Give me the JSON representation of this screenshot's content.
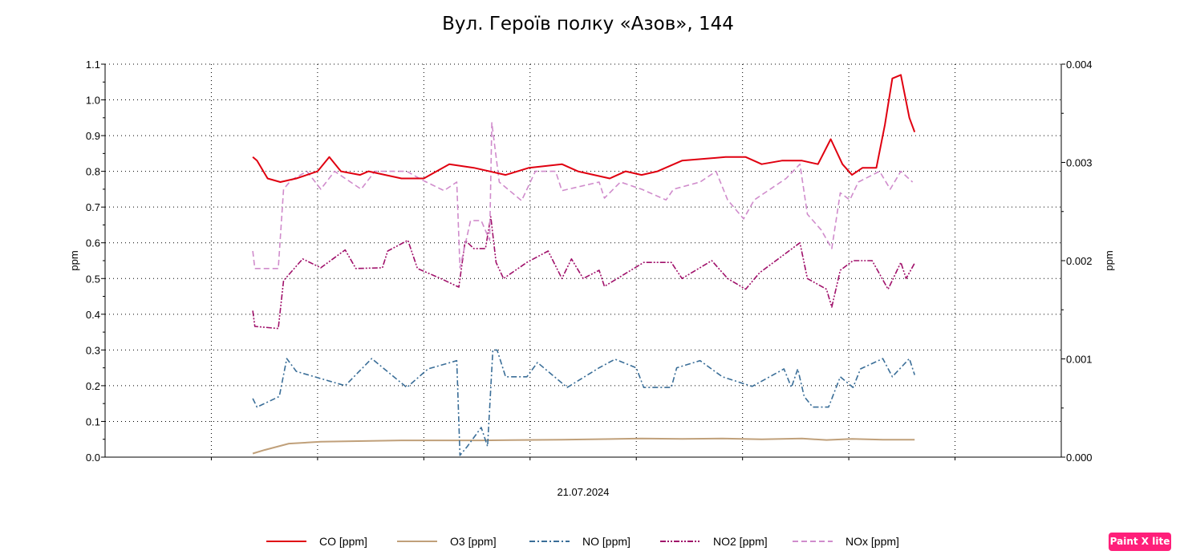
{
  "chart_data": {
    "type": "line",
    "title": "Вул. Героїв полку «Азов», 144",
    "xlabel": "21.07.2024",
    "ylabel": "ppm",
    "y2label": "ppm",
    "xlim": [
      0,
      9
    ],
    "ylim": [
      0,
      1.1
    ],
    "y2lim": [
      0,
      0.004
    ],
    "yticks": [
      "0.0",
      "0.1",
      "0.2",
      "0.3",
      "0.4",
      "0.5",
      "0.6",
      "0.7",
      "0.8",
      "0.9",
      "1.0",
      "1.1"
    ],
    "y2ticks": [
      "0.000",
      "0.001",
      "0.002",
      "0.003",
      "0.004"
    ],
    "grid": true,
    "legend_position": "bottom",
    "series": [
      {
        "name": "CO [ppm]",
        "color": "#e00010",
        "style": "solid",
        "x": [
          1.39,
          1.43,
          1.53,
          1.65,
          1.8,
          1.9,
          2.0,
          2.11,
          2.22,
          2.4,
          2.48,
          2.79,
          3.0,
          3.24,
          3.47,
          3.77,
          3.99,
          4.3,
          4.45,
          4.75,
          4.9,
          5.05,
          5.2,
          5.43,
          5.84,
          6.03,
          6.18,
          6.37,
          6.56,
          6.71,
          6.83,
          6.94,
          7.03,
          7.13,
          7.26,
          7.34,
          7.41,
          7.49,
          7.57,
          7.62
        ],
        "y": [
          0.84,
          0.83,
          0.78,
          0.77,
          0.78,
          0.79,
          0.8,
          0.84,
          0.8,
          0.79,
          0.8,
          0.78,
          0.78,
          0.82,
          0.81,
          0.79,
          0.81,
          0.82,
          0.8,
          0.78,
          0.8,
          0.79,
          0.8,
          0.83,
          0.84,
          0.84,
          0.82,
          0.83,
          0.83,
          0.82,
          0.89,
          0.82,
          0.79,
          0.81,
          0.81,
          0.93,
          1.06,
          1.07,
          0.95,
          0.91
        ]
      },
      {
        "name": "O3 [ppm]",
        "color": "#c0a07a",
        "style": "solid",
        "x": [
          1.39,
          1.5,
          1.73,
          2.03,
          2.79,
          3.54,
          4.3,
          5.05,
          5.43,
          5.81,
          6.18,
          6.56,
          6.79,
          7.03,
          7.32,
          7.62
        ],
        "y": [
          0.01,
          0.02,
          0.038,
          0.043,
          0.047,
          0.047,
          0.049,
          0.052,
          0.051,
          0.052,
          0.05,
          0.052,
          0.048,
          0.051,
          0.049,
          0.049
        ]
      },
      {
        "name": "NO [ppm]",
        "color": "#3a6e98",
        "style": "dashdot",
        "x": [
          1.39,
          1.43,
          1.64,
          1.71,
          1.8,
          2.26,
          2.51,
          2.84,
          3.04,
          3.31,
          3.34,
          3.41,
          3.54,
          3.6,
          3.65,
          3.69,
          3.77,
          3.97,
          4.07,
          4.35,
          4.65,
          4.8,
          5.0,
          5.07,
          5.33,
          5.38,
          5.6,
          5.81,
          6.09,
          6.39,
          6.46,
          6.52,
          6.58,
          6.66,
          6.81,
          6.92,
          7.04,
          7.11,
          7.32,
          7.41,
          7.57,
          7.62
        ],
        "y": [
          0.164,
          0.14,
          0.17,
          0.276,
          0.24,
          0.2,
          0.276,
          0.195,
          0.247,
          0.27,
          0.005,
          0.03,
          0.083,
          0.03,
          0.3,
          0.3,
          0.225,
          0.225,
          0.265,
          0.195,
          0.25,
          0.274,
          0.25,
          0.195,
          0.195,
          0.25,
          0.27,
          0.225,
          0.198,
          0.247,
          0.195,
          0.247,
          0.17,
          0.14,
          0.14,
          0.225,
          0.195,
          0.247,
          0.276,
          0.225,
          0.276,
          0.23
        ]
      },
      {
        "name": "NO2 [ppm]",
        "color": "#a0106a",
        "style": "dashdotdot",
        "x": [
          1.39,
          1.41,
          1.63,
          1.68,
          1.86,
          2.03,
          2.26,
          2.36,
          2.61,
          2.66,
          2.85,
          2.94,
          3.16,
          3.33,
          3.39,
          3.47,
          3.58,
          3.63,
          3.68,
          3.75,
          3.97,
          4.17,
          4.3,
          4.39,
          4.5,
          4.65,
          4.7,
          5.07,
          5.33,
          5.43,
          5.71,
          5.86,
          6.03,
          6.16,
          6.36,
          6.54,
          6.61,
          6.79,
          6.84,
          6.92,
          7.04,
          7.22,
          7.37,
          7.49,
          7.54,
          7.62
        ],
        "y": [
          0.41,
          0.366,
          0.36,
          0.494,
          0.555,
          0.53,
          0.58,
          0.528,
          0.53,
          0.577,
          0.607,
          0.528,
          0.5,
          0.476,
          0.607,
          0.584,
          0.584,
          0.673,
          0.545,
          0.5,
          0.545,
          0.577,
          0.5,
          0.555,
          0.5,
          0.523,
          0.478,
          0.545,
          0.545,
          0.5,
          0.55,
          0.5,
          0.47,
          0.516,
          0.56,
          0.6,
          0.5,
          0.47,
          0.42,
          0.523,
          0.55,
          0.55,
          0.47,
          0.545,
          0.5,
          0.543
        ]
      },
      {
        "name": "NOx [ppm]",
        "color": "#d08ccc",
        "style": "dash",
        "x": [
          1.39,
          1.41,
          1.63,
          1.68,
          1.75,
          1.9,
          2.03,
          2.16,
          2.41,
          2.54,
          2.84,
          2.99,
          3.19,
          3.31,
          3.34,
          3.44,
          3.54,
          3.62,
          3.64,
          3.71,
          3.92,
          4.05,
          4.24,
          4.3,
          4.65,
          4.7,
          4.85,
          5.05,
          5.28,
          5.35,
          5.6,
          5.75,
          5.86,
          6.01,
          6.11,
          6.26,
          6.41,
          6.54,
          6.61,
          6.74,
          6.84,
          6.92,
          7.01,
          7.09,
          7.29,
          7.39,
          7.49,
          7.6
        ],
        "y": [
          0.577,
          0.528,
          0.528,
          0.75,
          0.775,
          0.8,
          0.75,
          0.8,
          0.75,
          0.8,
          0.8,
          0.775,
          0.746,
          0.77,
          0.53,
          0.662,
          0.662,
          0.607,
          0.936,
          0.77,
          0.718,
          0.8,
          0.8,
          0.746,
          0.77,
          0.725,
          0.77,
          0.75,
          0.72,
          0.75,
          0.77,
          0.8,
          0.72,
          0.667,
          0.72,
          0.75,
          0.78,
          0.82,
          0.68,
          0.636,
          0.584,
          0.74,
          0.72,
          0.77,
          0.8,
          0.75,
          0.8,
          0.77
        ]
      }
    ]
  },
  "badge": {
    "label": "Paint X lite",
    "color": "#ff1f7a"
  }
}
